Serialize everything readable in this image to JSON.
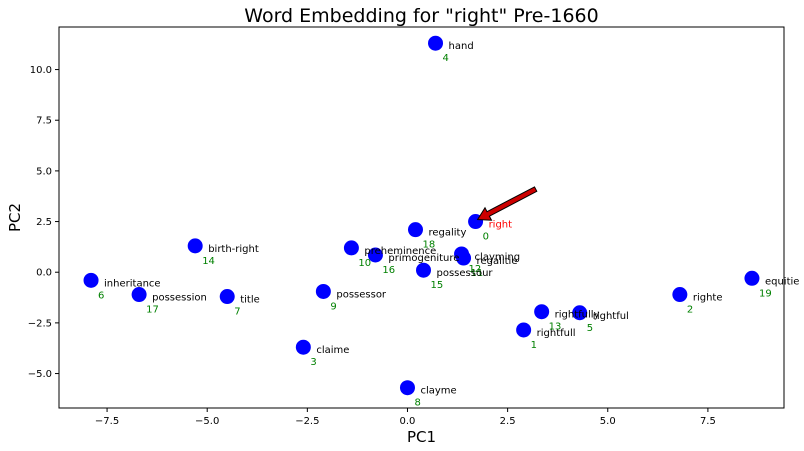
{
  "chart_data": {
    "type": "scatter",
    "title": "Word Embedding for \"right\" Pre-1660",
    "xlabel": "PC1",
    "ylabel": "PC2",
    "xlim": [
      -8.7,
      9.4
    ],
    "ylim": [
      -6.7,
      12.1
    ],
    "xticks": [
      -7.5,
      -5.0,
      -2.5,
      0.0,
      2.5,
      5.0,
      7.5
    ],
    "xtick_labels": [
      "−7.5",
      "−5.0",
      "−2.5",
      "0.0",
      "2.5",
      "5.0",
      "7.5"
    ],
    "yticks": [
      -5.0,
      -2.5,
      0.0,
      2.5,
      5.0,
      7.5,
      10.0
    ],
    "ytick_labels": [
      "−5.0",
      "−2.5",
      "0.0",
      "2.5",
      "5.0",
      "7.5",
      "10.0"
    ],
    "grid": false,
    "marker_color": "#0000ff",
    "label_color": "#000000",
    "highlight_color": "#ff0000",
    "index_color": "#008000",
    "arrow_color": "#cc0000",
    "points": [
      {
        "word": "right",
        "index": "0",
        "x": 1.7,
        "y": 2.5,
        "highlight": true
      },
      {
        "word": "rightfull",
        "index": "1",
        "x": 2.9,
        "y": -2.85
      },
      {
        "word": "righte",
        "index": "2",
        "x": 6.8,
        "y": -1.1
      },
      {
        "word": "claime",
        "index": "3",
        "x": -2.6,
        "y": -3.7
      },
      {
        "word": "hand",
        "index": "4",
        "x": 0.7,
        "y": 11.3
      },
      {
        "word": "rightful",
        "index": "5",
        "x": 4.3,
        "y": -2.0
      },
      {
        "word": "inheritance",
        "index": "6",
        "x": -7.9,
        "y": -0.4
      },
      {
        "word": "title",
        "index": "7",
        "x": -4.5,
        "y": -1.2
      },
      {
        "word": "clayme",
        "index": "8",
        "x": 0.0,
        "y": -5.7
      },
      {
        "word": "possessor",
        "index": "9",
        "x": -2.1,
        "y": -0.95
      },
      {
        "word": "preheminence",
        "index": "10",
        "x": -1.4,
        "y": 1.2
      },
      {
        "word": "regalitie",
        "index": "11",
        "x": 1.4,
        "y": 0.7
      },
      {
        "word": "clayming",
        "index": "12",
        "x": 1.35,
        "y": 0.9
      },
      {
        "word": "rightfully",
        "index": "13",
        "x": 3.35,
        "y": -1.95
      },
      {
        "word": "birth-right",
        "index": "14",
        "x": -5.3,
        "y": 1.3
      },
      {
        "word": "possessour",
        "index": "15",
        "x": 0.4,
        "y": 0.1
      },
      {
        "word": "primogeniture",
        "index": "16",
        "x": -0.8,
        "y": 0.85
      },
      {
        "word": "possession",
        "index": "17",
        "x": -6.7,
        "y": -1.1
      },
      {
        "word": "regality",
        "index": "18",
        "x": 0.2,
        "y": 2.1
      },
      {
        "word": "equitie",
        "index": "19",
        "x": 8.6,
        "y": -0.3
      }
    ],
    "annotation": {
      "text": "",
      "from": [
        3.2,
        4.1
      ],
      "to": [
        1.75,
        2.6
      ]
    }
  }
}
